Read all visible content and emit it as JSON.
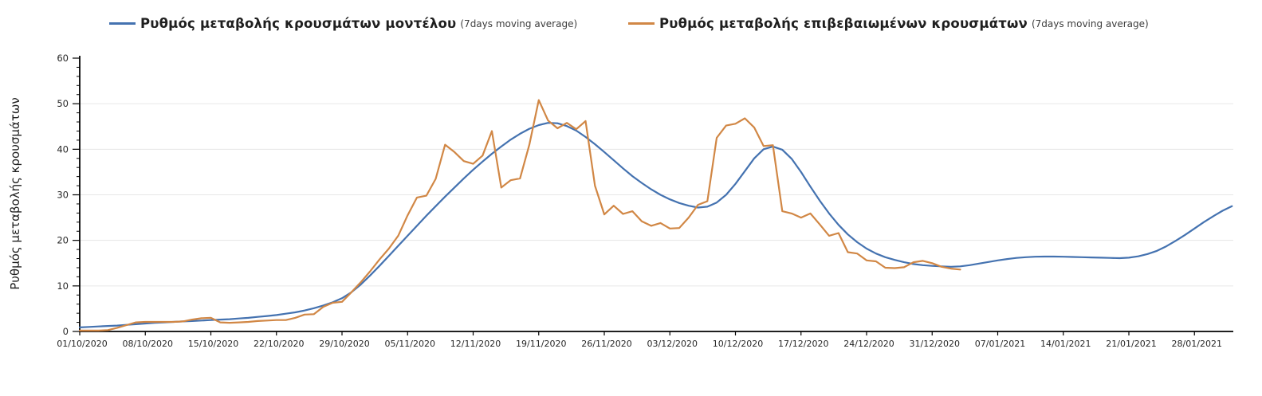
{
  "legend": {
    "items": [
      {
        "label": "Ρυθμός μεταβολής κρουσμάτων μοντέλου",
        "sub": "(7days moving average)",
        "color": "#4472b0"
      },
      {
        "label": "Ρυθμός μεταβολής επιβεβαιωμένων κρουσμάτων",
        "sub": "(7days moving average)",
        "color": "#d18745"
      }
    ]
  },
  "chart_data": {
    "type": "line",
    "title": "",
    "xlabel": "",
    "ylabel": "Ρυθμός μεταβολής κρουσμάτων",
    "ylim": [
      0,
      60
    ],
    "y_ticks": [
      0,
      10,
      20,
      30,
      40,
      50,
      60
    ],
    "y_minor_tick_step": 2,
    "y_gridlines": [
      10,
      20,
      30,
      40,
      50
    ],
    "grid": "horizontal",
    "legend_position": "top",
    "start_date": "01/10/2020",
    "x_tick_interval_days": 7,
    "x_tick_labels": [
      "01/10/2020",
      "08/10/2020",
      "15/10/2020",
      "22/10/2020",
      "29/10/2020",
      "05/11/2020",
      "12/11/2020",
      "19/11/2020",
      "26/11/2020",
      "03/12/2020",
      "10/12/2020",
      "17/12/2020",
      "24/12/2020",
      "31/12/2020",
      "07/01/2021",
      "14/01/2021",
      "21/01/2021",
      "28/01/2021"
    ],
    "colors": {
      "axis": "#000000",
      "grid": "#e6e6e6",
      "text": "#262626"
    },
    "series": [
      {
        "name": "Ρυθμός μεταβολής κρουσμάτων μοντέλου (7days moving average)",
        "color": "#4472b0",
        "start_day": 0,
        "values": [
          0.9,
          1.0,
          1.1,
          1.2,
          1.3,
          1.45,
          1.6,
          1.75,
          1.9,
          2.0,
          2.1,
          2.2,
          2.3,
          2.4,
          2.5,
          2.6,
          2.7,
          2.85,
          3.0,
          3.2,
          3.4,
          3.6,
          3.9,
          4.2,
          4.6,
          5.1,
          5.7,
          6.4,
          7.3,
          8.6,
          10.3,
          12.3,
          14.4,
          16.6,
          18.8,
          21.0,
          23.2,
          25.4,
          27.5,
          29.6,
          31.6,
          33.6,
          35.5,
          37.3,
          39.0,
          40.6,
          42.1,
          43.4,
          44.5,
          45.3,
          45.8,
          45.7,
          45.1,
          44.1,
          42.7,
          41.1,
          39.4,
          37.6,
          35.8,
          34.1,
          32.6,
          31.2,
          30.0,
          29.0,
          28.2,
          27.6,
          27.2,
          27.4,
          28.3,
          30.0,
          32.4,
          35.2,
          38.0,
          40.0,
          40.6,
          39.9,
          37.9,
          35.0,
          31.8,
          28.7,
          25.9,
          23.4,
          21.3,
          19.6,
          18.2,
          17.1,
          16.3,
          15.7,
          15.2,
          14.8,
          14.55,
          14.4,
          14.3,
          14.2,
          14.3,
          14.55,
          14.9,
          15.25,
          15.6,
          15.9,
          16.15,
          16.3,
          16.4,
          16.45,
          16.45,
          16.4,
          16.35,
          16.3,
          16.25,
          16.2,
          16.15,
          16.1,
          16.2,
          16.5,
          17.0,
          17.7,
          18.7,
          19.9,
          21.2,
          22.6,
          24.0,
          25.3,
          26.5,
          27.5
        ]
      },
      {
        "name": "Ρυθμός μεταβολής επιβεβαιωμένων κρουσμάτων (7days moving average)",
        "color": "#d18745",
        "start_day": 0,
        "values": [
          0.2,
          0.2,
          0.2,
          0.3,
          0.8,
          1.4,
          2.0,
          2.1,
          2.1,
          2.1,
          2.1,
          2.2,
          2.6,
          2.9,
          3.0,
          2.0,
          1.9,
          2.0,
          2.1,
          2.3,
          2.4,
          2.5,
          2.5,
          3.0,
          3.7,
          3.8,
          5.4,
          6.3,
          6.5,
          8.6,
          10.8,
          13.2,
          15.8,
          18.2,
          21.0,
          25.5,
          29.4,
          29.8,
          33.5,
          41.0,
          39.4,
          37.4,
          36.8,
          38.6,
          44.0,
          31.6,
          33.2,
          33.6,
          41.0,
          50.8,
          46.3,
          44.6,
          45.8,
          44.4,
          46.2,
          32.0,
          25.7,
          27.6,
          25.8,
          26.4,
          24.2,
          23.2,
          23.8,
          22.6,
          22.7,
          25.0,
          27.8,
          28.6,
          42.5,
          45.2,
          45.6,
          46.8,
          44.8,
          40.7,
          40.9,
          26.4,
          25.9,
          25.0,
          25.9,
          23.5,
          21.0,
          21.6,
          17.4,
          17.1,
          15.6,
          15.4,
          14.0,
          13.9,
          14.1,
          15.2,
          15.5,
          15.0,
          14.2,
          13.8,
          13.6
        ]
      }
    ]
  }
}
